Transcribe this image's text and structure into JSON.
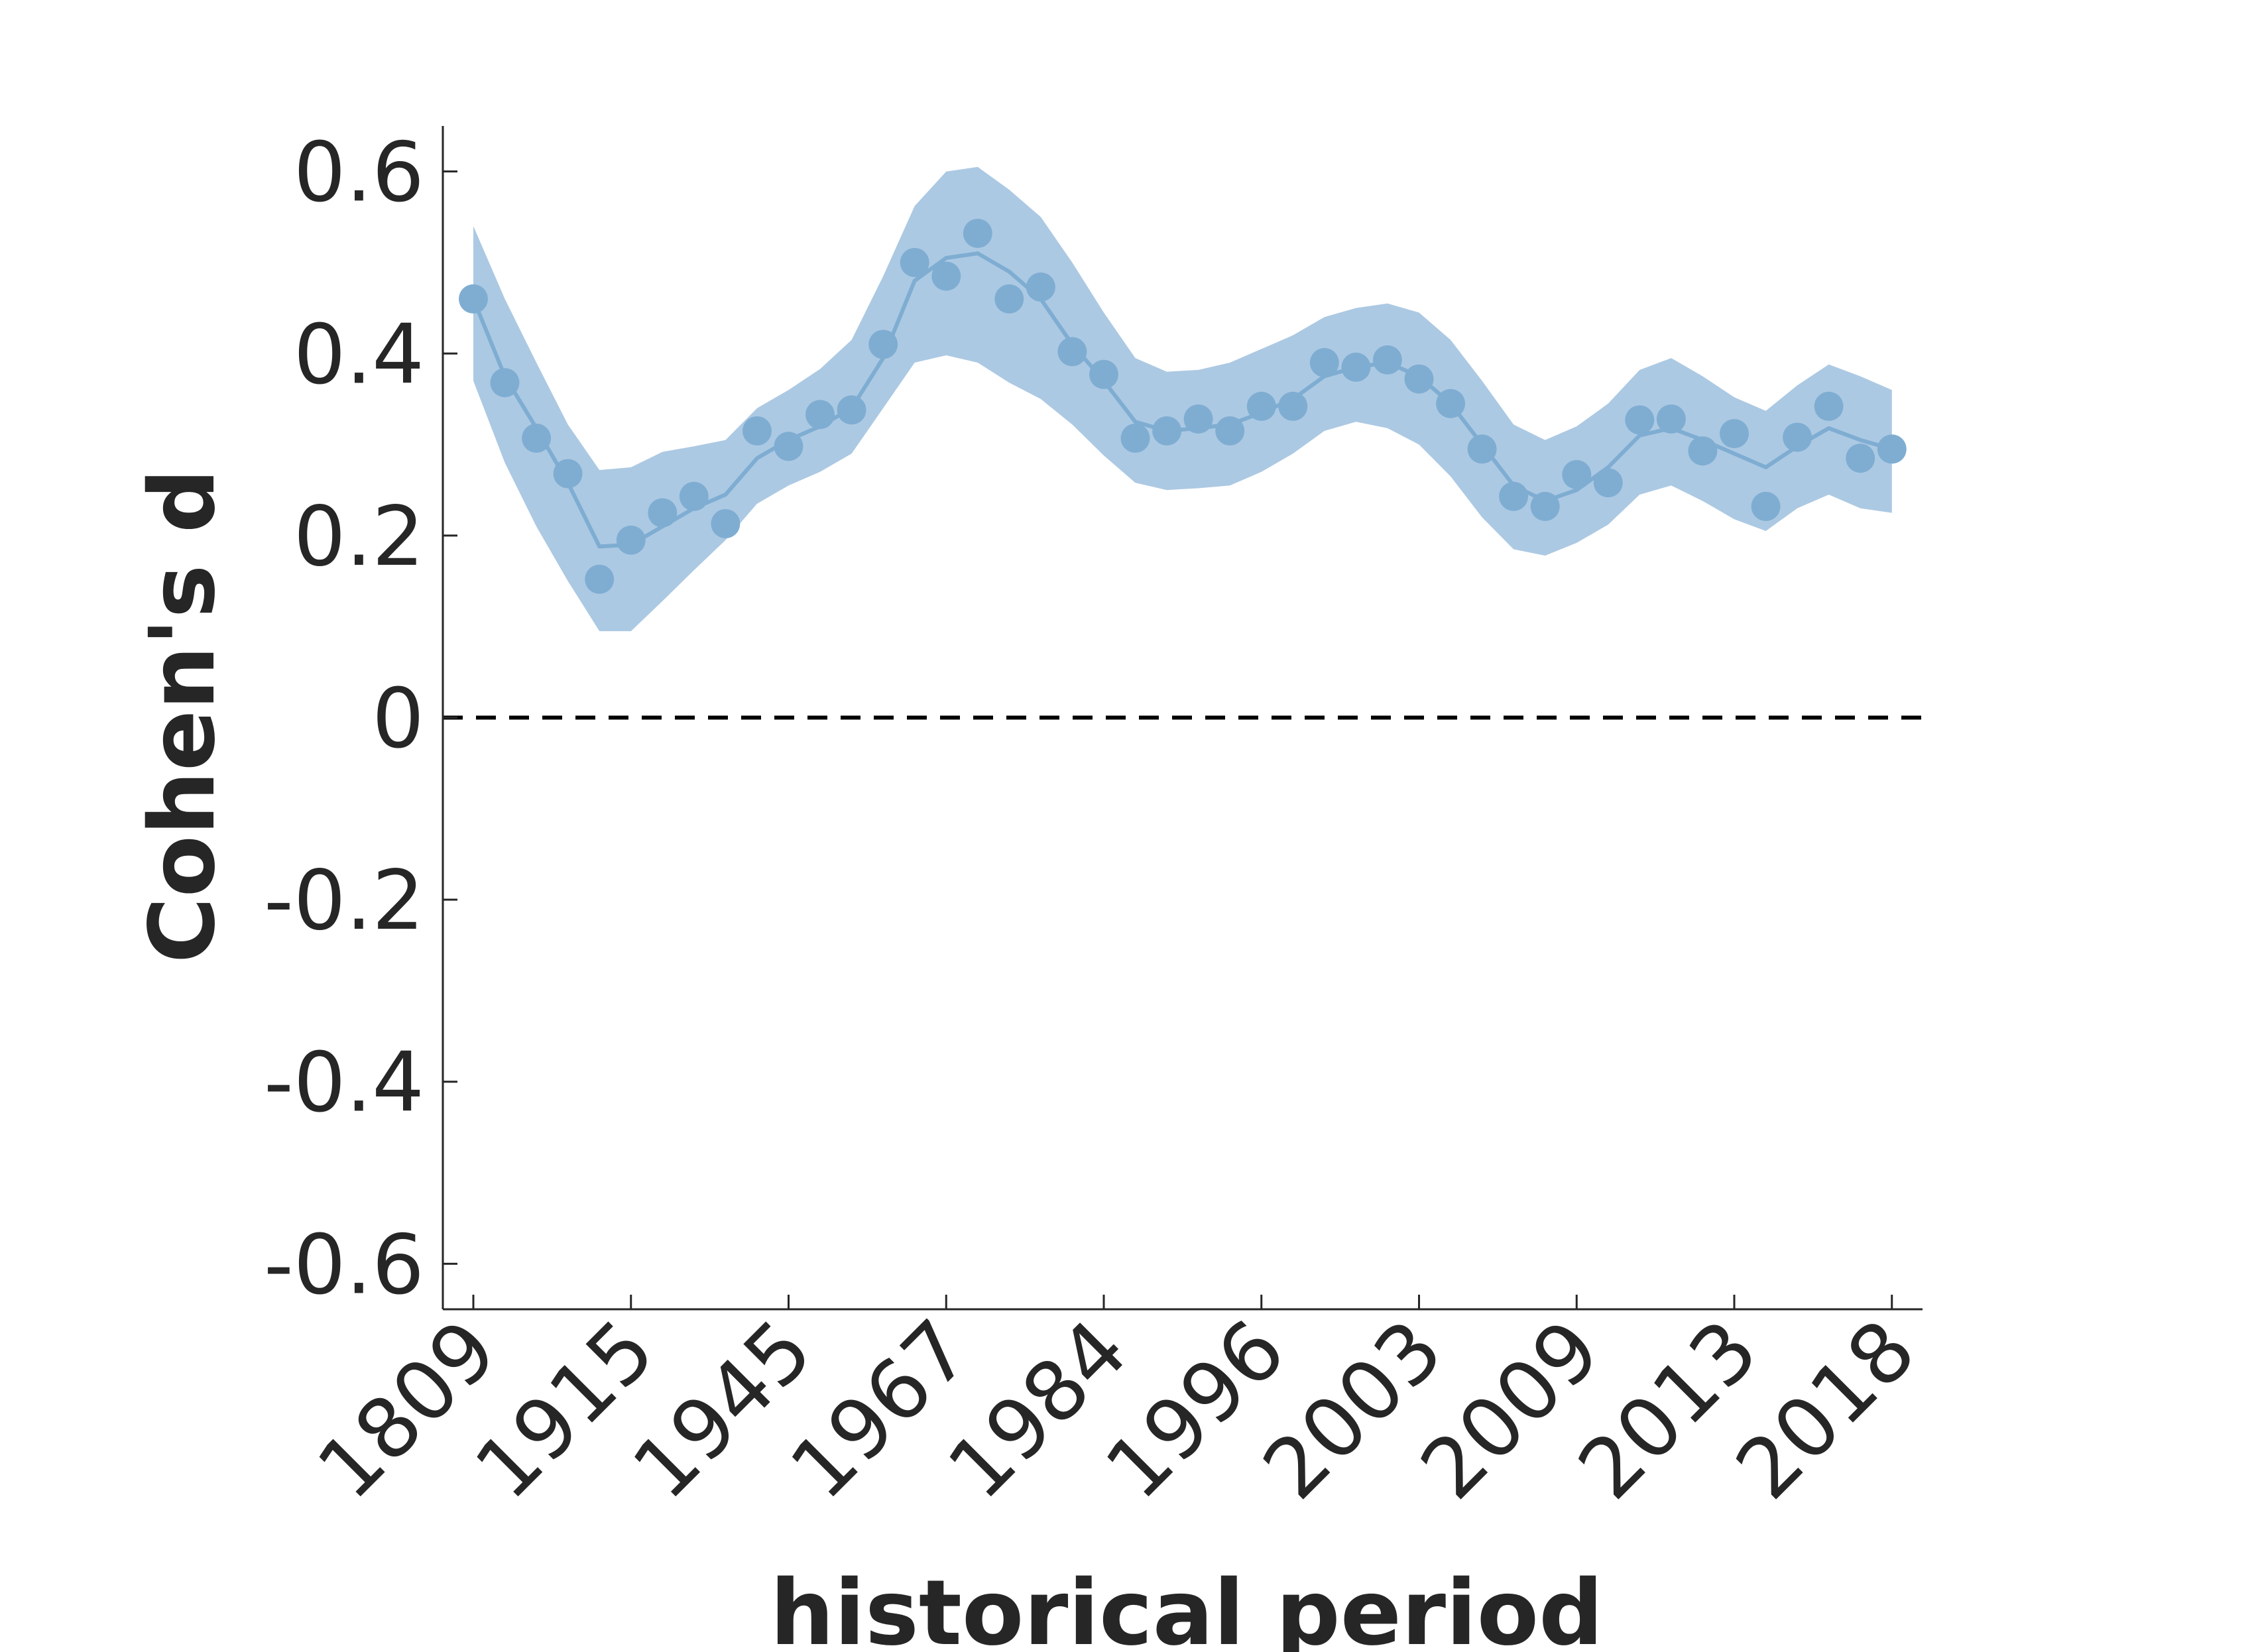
{
  "chart_data": {
    "type": "line",
    "xlabel": "historical period",
    "ylabel": "Cohen's d",
    "ylim": [
      -0.65,
      0.65
    ],
    "yticks": [
      -0.6,
      -0.4,
      -0.2,
      0,
      0.2,
      0.4,
      0.6
    ],
    "ytick_labels": [
      "-0.6",
      "-0.4",
      "-0.2",
      "0",
      "0.2",
      "0.4",
      "0.6"
    ],
    "xtick_labels": [
      "1809",
      "1915",
      "1945",
      "1967",
      "1984",
      "1996",
      "2003",
      "2009",
      "2013",
      "2018"
    ],
    "xtick_every": 5,
    "reference_line": {
      "y": 0,
      "style": "dashed",
      "color": "#000000"
    },
    "grid": false,
    "colors": {
      "series": "#7fadd2",
      "band": "#acc9e3",
      "axis": "#262626"
    },
    "series": [
      {
        "points": [
          0.46,
          0.368,
          0.307,
          0.268,
          0.152,
          0.195,
          0.225,
          0.243,
          0.213,
          0.315,
          0.298,
          0.333,
          0.338,
          0.41,
          0.5,
          0.485,
          0.532,
          0.46,
          0.473,
          0.402,
          0.377,
          0.307,
          0.315,
          0.328,
          0.315,
          0.342,
          0.342,
          0.39,
          0.385,
          0.393,
          0.372,
          0.345,
          0.295,
          0.243,
          0.232,
          0.267,
          0.258,
          0.327,
          0.328,
          0.293,
          0.312,
          0.232,
          0.308,
          0.342,
          0.285,
          0.295
        ],
        "smooth": [
          0.46,
          0.375,
          0.318,
          0.258,
          0.188,
          0.19,
          0.21,
          0.23,
          0.245,
          0.285,
          0.305,
          0.32,
          0.34,
          0.395,
          0.48,
          0.505,
          0.51,
          0.49,
          0.46,
          0.41,
          0.37,
          0.325,
          0.315,
          0.318,
          0.322,
          0.335,
          0.35,
          0.375,
          0.385,
          0.39,
          0.375,
          0.345,
          0.3,
          0.255,
          0.238,
          0.25,
          0.275,
          0.31,
          0.318,
          0.305,
          0.29,
          0.275,
          0.298,
          0.318,
          0.305,
          0.295
        ],
        "ci_upper": [
          0.54,
          0.46,
          0.39,
          0.322,
          0.272,
          0.275,
          0.292,
          0.298,
          0.305,
          0.34,
          0.36,
          0.383,
          0.415,
          0.485,
          0.562,
          0.6,
          0.605,
          0.58,
          0.55,
          0.5,
          0.445,
          0.395,
          0.38,
          0.382,
          0.39,
          0.405,
          0.42,
          0.44,
          0.45,
          0.455,
          0.445,
          0.415,
          0.37,
          0.322,
          0.305,
          0.32,
          0.345,
          0.382,
          0.395,
          0.375,
          0.352,
          0.337,
          0.365,
          0.388,
          0.375,
          0.36
        ],
        "ci_lower": [
          0.37,
          0.28,
          0.21,
          0.15,
          0.095,
          0.095,
          0.128,
          0.162,
          0.195,
          0.235,
          0.255,
          0.27,
          0.29,
          0.34,
          0.39,
          0.398,
          0.39,
          0.368,
          0.35,
          0.322,
          0.288,
          0.258,
          0.25,
          0.252,
          0.255,
          0.27,
          0.29,
          0.315,
          0.325,
          0.318,
          0.3,
          0.265,
          0.22,
          0.185,
          0.178,
          0.192,
          0.212,
          0.245,
          0.255,
          0.238,
          0.218,
          0.205,
          0.23,
          0.245,
          0.23,
          0.225
        ]
      }
    ]
  }
}
